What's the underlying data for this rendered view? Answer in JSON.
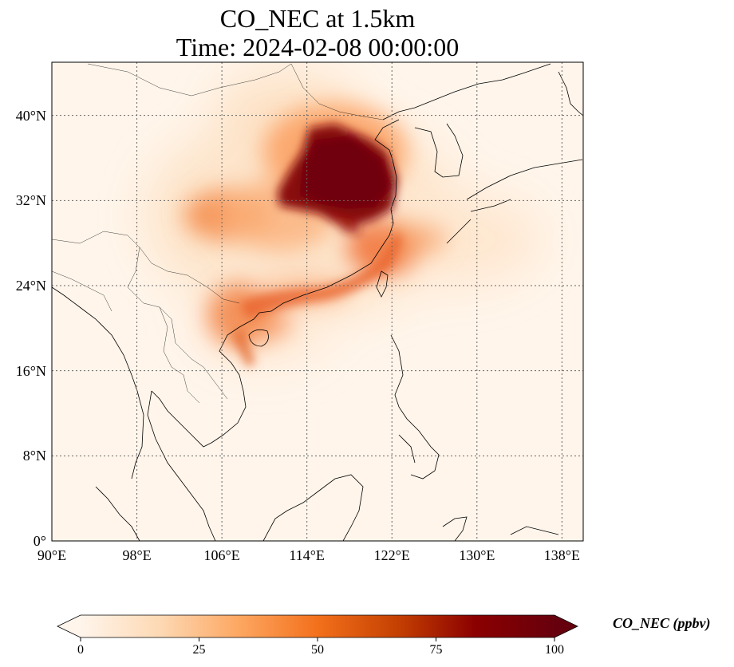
{
  "title": {
    "line1": "CO_NEC at 1.5km",
    "line2": "Time: 2024-02-08 00:00:00"
  },
  "map": {
    "lon_range": [
      90,
      140
    ],
    "lat_range": [
      0,
      45
    ],
    "lon_ticks": [
      {
        "value": 90,
        "label": "90°E"
      },
      {
        "value": 98,
        "label": "98°E"
      },
      {
        "value": 106,
        "label": "106°E"
      },
      {
        "value": 114,
        "label": "114°E"
      },
      {
        "value": 122,
        "label": "122°E"
      },
      {
        "value": 130,
        "label": "130°E"
      },
      {
        "value": 138,
        "label": "138°E"
      }
    ],
    "lat_ticks": [
      {
        "value": 0,
        "label": "0°"
      },
      {
        "value": 8,
        "label": "8°N"
      },
      {
        "value": 16,
        "label": "16°N"
      },
      {
        "value": 24,
        "label": "24°N"
      },
      {
        "value": 32,
        "label": "32°N"
      },
      {
        "value": 40,
        "label": "40°N"
      }
    ],
    "gridlines": true,
    "background_color": "#fff5eb",
    "coastline_color": "#000000"
  },
  "colorbar": {
    "label": "CO_NEC (ppbv)",
    "min": 0,
    "max": 100,
    "extend": "both",
    "ticks": [
      {
        "value": 0,
        "label": "0"
      },
      {
        "value": 25,
        "label": "25"
      },
      {
        "value": 50,
        "label": "50"
      },
      {
        "value": 75,
        "label": "75"
      },
      {
        "value": 100,
        "label": "100"
      }
    ],
    "colors": [
      "#fff5eb",
      "#fdd9b4",
      "#fda762",
      "#f3701b",
      "#c54102",
      "#8b0000",
      "#67000d"
    ]
  }
}
